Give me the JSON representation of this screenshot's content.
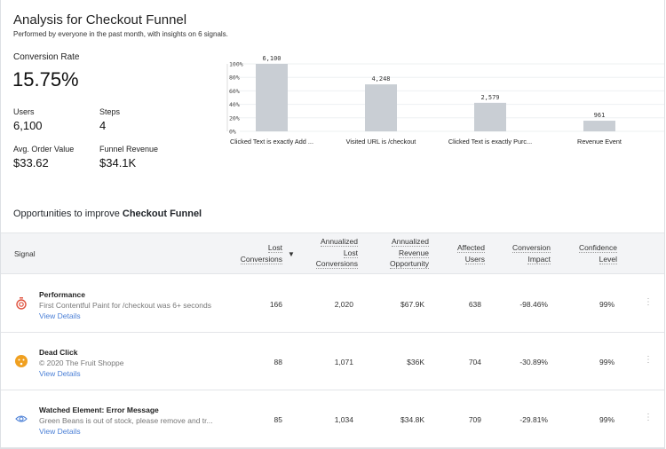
{
  "header": {
    "title": "Analysis for Checkout Funnel",
    "subtitle": "Performed by everyone in the past month, with insights on 6 signals."
  },
  "stats": {
    "conversion_rate_label": "Conversion Rate",
    "conversion_rate": "15.75%",
    "users_label": "Users",
    "users": "6,100",
    "steps_label": "Steps",
    "steps": "4",
    "aov_label": "Avg. Order Value",
    "aov": "$33.62",
    "revenue_label": "Funnel Revenue",
    "revenue": "$34.1K"
  },
  "chart_data": {
    "type": "bar",
    "categories": [
      "Clicked Text is exactly Add ...",
      "Visited URL is /checkout",
      "Clicked Text is exactly Purc...",
      "Revenue Event"
    ],
    "values": [
      6100,
      4248,
      2579,
      961
    ],
    "data_labels": [
      "6,100",
      "4,248",
      "2,579",
      "961"
    ],
    "percent_of_first": [
      100,
      69.6,
      42.3,
      15.75
    ],
    "y_ticks": [
      "0%",
      "20%",
      "40%",
      "60%",
      "80%",
      "100%"
    ],
    "ylim": [
      0,
      100
    ],
    "grid": true,
    "bar_color": "#c9ced4"
  },
  "opportunities": {
    "title_prefix": "Opportunities to improve ",
    "title_bold": "Checkout Funnel"
  },
  "table": {
    "signal_header": "Signal",
    "columns": [
      [
        "Lost",
        "Conversions"
      ],
      [
        "Annualized",
        "Lost",
        "Conversions"
      ],
      [
        "Annualized",
        "Revenue",
        "Opportunity"
      ],
      [
        "Affected",
        "Users"
      ],
      [
        "Conversion",
        "Impact"
      ],
      [
        "Confidence",
        "Level"
      ]
    ],
    "sort_icon": "caret-down",
    "rows": [
      {
        "icon": "stopwatch",
        "icon_color": "#e0533f",
        "title": "Performance",
        "desc": "First Contentful Paint for /checkout was 6+ seconds",
        "link": "View Details",
        "cells": [
          "166",
          "2,020",
          "$67.9K",
          "638",
          "-98.46%",
          "99%"
        ]
      },
      {
        "icon": "dead-face",
        "icon_color": "#f0a020",
        "title": "Dead Click",
        "desc": "© 2020 The Fruit Shoppe",
        "link": "View Details",
        "cells": [
          "88",
          "1,071",
          "$36K",
          "704",
          "-30.89%",
          "99%"
        ]
      },
      {
        "icon": "eye",
        "icon_color": "#4a7fd6",
        "title": "Watched Element: Error Message",
        "desc": "Green Beans is out of stock, please remove and tr...",
        "link": "View Details",
        "cells": [
          "85",
          "1,034",
          "$34.8K",
          "709",
          "-29.81%",
          "99%"
        ]
      }
    ]
  }
}
